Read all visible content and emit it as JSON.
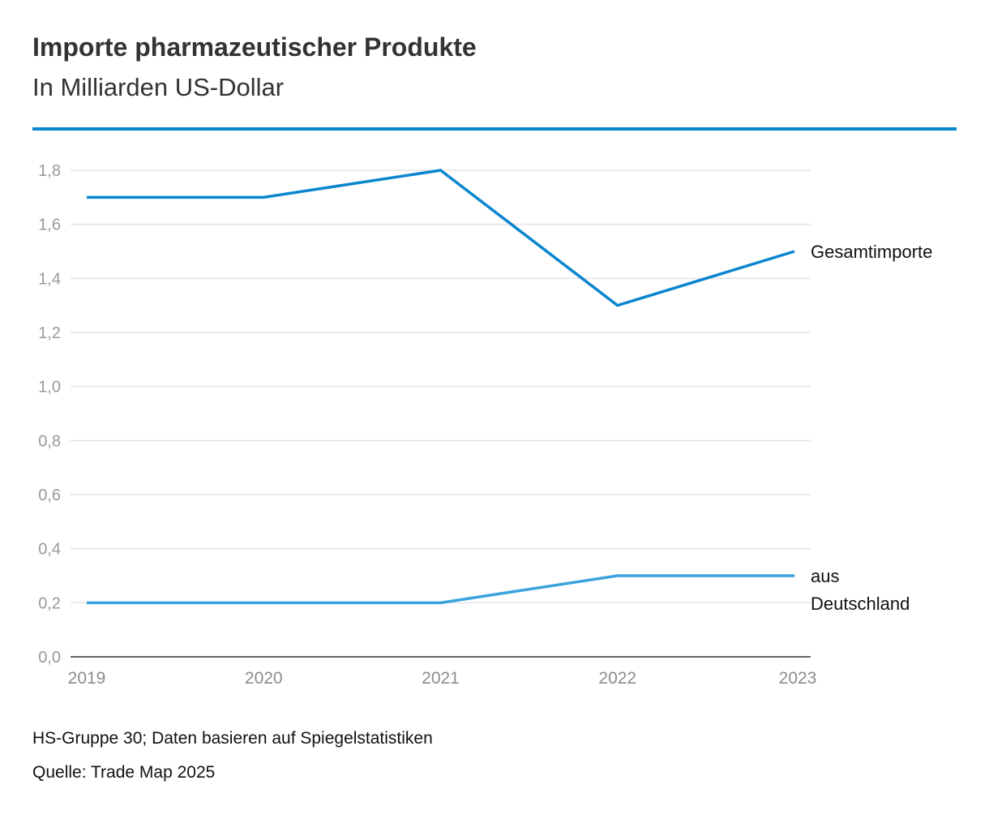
{
  "header": {
    "title": "Importe pharmazeutischer Produkte",
    "subtitle": "In Milliarden US-Dollar"
  },
  "footer": {
    "note": "HS-Gruppe 30; Daten basieren auf Spiegelstatistiken",
    "source": "Quelle: Trade Map 2025"
  },
  "colors": {
    "accent": "#0a86cf",
    "series_gesamt": "#0a86cf",
    "series_deutschland": "#3aa3dc"
  },
  "chart_data": {
    "type": "line",
    "title": "Importe pharmazeutischer Produkte",
    "subtitle": "In Milliarden US-Dollar",
    "xlabel": "",
    "ylabel": "",
    "x": [
      "2019",
      "2020",
      "2021",
      "2022",
      "2023"
    ],
    "ylim": [
      0,
      1.8
    ],
    "yticks": [
      "0,0",
      "0,2",
      "0,4",
      "0,6",
      "0,8",
      "1,0",
      "1,2",
      "1,4",
      "1,6",
      "1,8"
    ],
    "grid": true,
    "series": [
      {
        "name": "Gesamtimporte",
        "label_lines": [
          "Gesamtimporte"
        ],
        "values": [
          1.7,
          1.7,
          1.8,
          1.3,
          1.5
        ]
      },
      {
        "name": "aus Deutschland",
        "label_lines": [
          "aus",
          "Deutschland"
        ],
        "values": [
          0.2,
          0.2,
          0.2,
          0.3,
          0.3
        ]
      }
    ]
  }
}
